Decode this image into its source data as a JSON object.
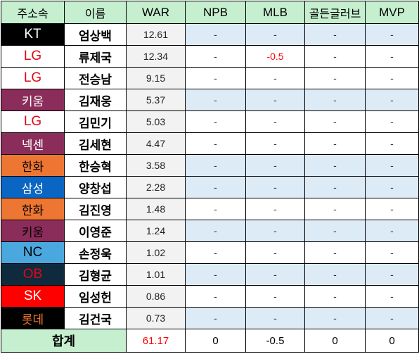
{
  "headers": [
    "주소속",
    "이름",
    "WAR",
    "NPB",
    "MLB",
    "골든글러브",
    "MVP"
  ],
  "rows": [
    {
      "team": "KT",
      "team_bg": "#000000",
      "team_fg": "#ffffff",
      "name": "엄상백",
      "war": "12.61",
      "npb": "-",
      "mlb": "-",
      "gg": "-",
      "mvp": "-",
      "highlight": true
    },
    {
      "team": "LG",
      "team_bg": "#ffffff",
      "team_fg": "#e30613",
      "name": "류제국",
      "war": "12.34",
      "npb": "-",
      "mlb": "-0.5",
      "gg": "-",
      "mvp": "-",
      "highlight": false
    },
    {
      "team": "LG",
      "team_bg": "#ffffff",
      "team_fg": "#e30613",
      "name": "전승남",
      "war": "9.15",
      "npb": "-",
      "mlb": "-",
      "gg": "-",
      "mvp": "-",
      "highlight": false
    },
    {
      "team": "키움",
      "team_bg": "#8b2d5a",
      "team_fg": "#ffffff",
      "name": "김재웅",
      "war": "5.37",
      "npb": "-",
      "mlb": "-",
      "gg": "-",
      "mvp": "-",
      "highlight": true
    },
    {
      "team": "LG",
      "team_bg": "#ffffff",
      "team_fg": "#e30613",
      "name": "김민기",
      "war": "5.03",
      "npb": "-",
      "mlb": "-",
      "gg": "-",
      "mvp": "-",
      "highlight": false
    },
    {
      "team": "넥센",
      "team_bg": "#8b2d5a",
      "team_fg": "#ffffff",
      "name": "김세현",
      "war": "4.47",
      "npb": "-",
      "mlb": "-",
      "gg": "-",
      "mvp": "-",
      "highlight": false
    },
    {
      "team": "한화",
      "team_bg": "#ed7633",
      "team_fg": "#000000",
      "name": "한승혁",
      "war": "3.58",
      "npb": "-",
      "mlb": "-",
      "gg": "-",
      "mvp": "-",
      "highlight": true
    },
    {
      "team": "삼성",
      "team_bg": "#0a66c2",
      "team_fg": "#ffffff",
      "name": "양창섭",
      "war": "2.28",
      "npb": "-",
      "mlb": "-",
      "gg": "-",
      "mvp": "-",
      "highlight": true
    },
    {
      "team": "한화",
      "team_bg": "#ed7633",
      "team_fg": "#000000",
      "name": "김진영",
      "war": "1.48",
      "npb": "-",
      "mlb": "-",
      "gg": "-",
      "mvp": "-",
      "highlight": false
    },
    {
      "team": "키움",
      "team_bg": "#8b2d5a",
      "team_fg": "#000000",
      "name": "이영준",
      "war": "1.24",
      "npb": "-",
      "mlb": "-",
      "gg": "-",
      "mvp": "-",
      "highlight": true
    },
    {
      "team": "NC",
      "team_bg": "#4aa8df",
      "team_fg": "#000000",
      "name": "손정욱",
      "war": "1.02",
      "npb": "-",
      "mlb": "-",
      "gg": "-",
      "mvp": "-",
      "highlight": false
    },
    {
      "team": "OB",
      "team_bg": "#0f2a3d",
      "team_fg": "#e30613",
      "name": "김형균",
      "war": "1.01",
      "npb": "-",
      "mlb": "-",
      "gg": "-",
      "mvp": "-",
      "highlight": true
    },
    {
      "team": "SK",
      "team_bg": "#ff0000",
      "team_fg": "#ffffff",
      "name": "임성헌",
      "war": "0.86",
      "npb": "-",
      "mlb": "-",
      "gg": "-",
      "mvp": "-",
      "highlight": false
    },
    {
      "team": "롯데",
      "team_bg": "#000000",
      "team_fg": "#ed7633",
      "name": "김건국",
      "war": "0.73",
      "npb": "-",
      "mlb": "-",
      "gg": "-",
      "mvp": "-",
      "highlight": true
    }
  ],
  "total": {
    "label": "합계",
    "war": "61.17",
    "npb": "0",
    "mlb": "-0.5",
    "gg": "0",
    "mvp": "0"
  }
}
